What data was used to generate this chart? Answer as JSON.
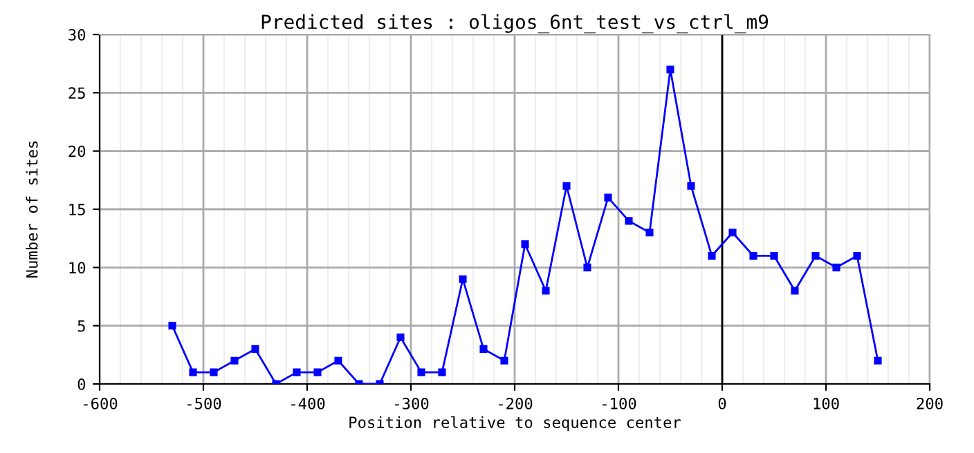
{
  "chart_data": {
    "type": "line",
    "title": "Predicted sites : oligos_6nt_test_vs_ctrl_m9",
    "xlabel": "Position relative to sequence center",
    "ylabel": "Number of sites",
    "x": [
      -530,
      -510,
      -490,
      -470,
      -450,
      -430,
      -410,
      -390,
      -370,
      -350,
      -330,
      -310,
      -290,
      -270,
      -250,
      -230,
      -210,
      -190,
      -170,
      -150,
      -130,
      -110,
      -90,
      -70,
      -50,
      -30,
      -10,
      10,
      30,
      50,
      70,
      90,
      110,
      130,
      150
    ],
    "series": [
      {
        "color": "#0000ff",
        "values": [
          5,
          1,
          1,
          2,
          3,
          0,
          1,
          1,
          2,
          0,
          0,
          4,
          1,
          1,
          9,
          3,
          2,
          12,
          8,
          17,
          10,
          16,
          14,
          13,
          27,
          17,
          11,
          13,
          11,
          11,
          8,
          11,
          10,
          11,
          2
        ]
      }
    ],
    "xlim": [
      -600,
      200
    ],
    "ylim": [
      0,
      30
    ],
    "xticks": [
      -600,
      -500,
      -400,
      -300,
      -200,
      -100,
      0,
      100,
      200
    ],
    "yticks": [
      0,
      5,
      10,
      15,
      20,
      25,
      30
    ],
    "grid": true,
    "marker": "square",
    "line_style": "solid",
    "legend": false,
    "ref_lines": [
      {
        "axis": "x",
        "value": 0,
        "color": "#000000"
      }
    ]
  }
}
